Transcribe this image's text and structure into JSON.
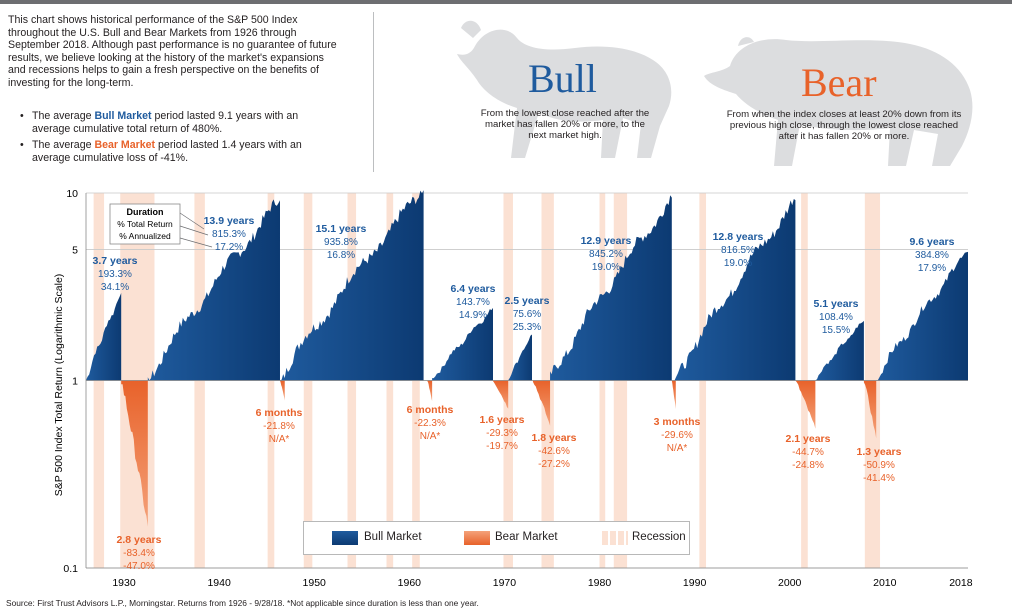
{
  "intro": {
    "paragraph": "This chart shows historical performance of the S&P 500 Index throughout the U.S. Bull and Bear Markets from 1926 through September 2018. Although past performance is no guarantee of future results, we believe looking at the history of the market's expansions and recessions helps to gain a fresh perspective on the benefits of investing for the long-term.",
    "bullet1_pre": "The average ",
    "bullet1_key": "Bull Market",
    "bullet1_post": " period lasted 9.1 years with an average cumulative total return of 480%.",
    "bullet2_pre": "The average ",
    "bullet2_key": "Bear Market",
    "bullet2_post": " period lasted 1.4 years with an average cumulative loss of -41%."
  },
  "headers": {
    "bull_title": "Bull",
    "bull_desc": "From the lowest close reached after the market has fallen 20% or more, to the next market high.",
    "bear_title": "Bear",
    "bear_desc": "From when the index closes at least 20% down from its previous high close, through the lowest close reached after it has fallen 20% or more."
  },
  "legend": {
    "bull": "Bull Market",
    "bear": "Bear Market",
    "recession": "Recession"
  },
  "source": "Source: First Trust Advisors L.P., Morningstar. Returns from 1926 - 9/28/18. *Not applicable since duration is less than one year.",
  "colors": {
    "bull": "#1f5b9e",
    "bull_dark": "#0c3a72",
    "bear": "#e8622a",
    "bear_light": "#f4a27a",
    "recession": "#fbe1d3",
    "gray_text": "#231f20",
    "silhouette": "#dcdddf"
  },
  "chart_data": {
    "type": "area",
    "ylabel": "S&P 500 Index Total Return (Logarithmic Scale)",
    "yscale": "log",
    "ylim": [
      0.1,
      10
    ],
    "y_ticks": [
      {
        "value": 10,
        "label": "10"
      },
      {
        "value": 5,
        "label": "5"
      },
      {
        "value": 1,
        "label": "1"
      },
      {
        "value": 0.1,
        "label": "0.1"
      }
    ],
    "xlim": [
      1926,
      2018.75
    ],
    "x_ticks": [
      {
        "value": 1930,
        "label": "1930"
      },
      {
        "value": 1940,
        "label": "1940"
      },
      {
        "value": 1950,
        "label": "1950"
      },
      {
        "value": 1960,
        "label": "1960"
      },
      {
        "value": 1970,
        "label": "1970"
      },
      {
        "value": 1980,
        "label": "1980"
      },
      {
        "value": 1990,
        "label": "1990"
      },
      {
        "value": 2000,
        "label": "2000"
      },
      {
        "value": 2010,
        "label": "2010"
      },
      {
        "value": 2018,
        "label": "2018"
      }
    ],
    "key_box": {
      "duration": "Duration",
      "total": "% Total Return",
      "annualized": "% Annualized"
    },
    "recessions": [
      [
        1926.8,
        1927.9
      ],
      [
        1929.6,
        1933.2
      ],
      [
        1937.4,
        1938.5
      ],
      [
        1945.1,
        1945.8
      ],
      [
        1948.9,
        1949.8
      ],
      [
        1953.5,
        1954.4
      ],
      [
        1957.6,
        1958.3
      ],
      [
        1960.3,
        1961.1
      ],
      [
        1969.9,
        1970.9
      ],
      [
        1973.9,
        1975.2
      ],
      [
        1980.0,
        1980.6
      ],
      [
        1981.5,
        1982.9
      ],
      [
        1990.5,
        1991.2
      ],
      [
        2001.2,
        2001.9
      ],
      [
        2007.9,
        2009.5
      ]
    ],
    "bull_markets": [
      {
        "start": 1926.0,
        "end": 1929.7,
        "peak": 2.93,
        "years": "3.7 years",
        "total": "193.3%",
        "annualized": "34.1%"
      },
      {
        "start": 1932.5,
        "end": 1946.4,
        "peak": 9.15,
        "years": "13.9 years",
        "total": "815.3%",
        "annualized": "17.2%"
      },
      {
        "start": 1946.4,
        "end": 1961.5,
        "peak": 10.36,
        "years": "15.1 years",
        "total": "935.8%",
        "annualized": "16.8%"
      },
      {
        "start": 1962.4,
        "end": 1968.8,
        "peak": 2.44,
        "years": "6.4 years",
        "total": "143.7%",
        "annualized": "14.9%"
      },
      {
        "start": 1970.4,
        "end": 1972.9,
        "peak": 1.76,
        "years": "2.5 years",
        "total": "75.6%",
        "annualized": "25.3%"
      },
      {
        "start": 1974.8,
        "end": 1987.6,
        "peak": 9.45,
        "years": "12.9 years",
        "total": "845.2%",
        "annualized": "19.0%"
      },
      {
        "start": 1987.9,
        "end": 2000.6,
        "peak": 9.17,
        "years": "12.8 years",
        "total": "816.5%",
        "annualized": "19.0%"
      },
      {
        "start": 2002.7,
        "end": 2007.8,
        "peak": 2.08,
        "years": "5.1 years",
        "total": "108.4%",
        "annualized": "15.5%"
      },
      {
        "start": 2009.1,
        "end": 2018.75,
        "peak": 4.85,
        "years": "9.6 years",
        "total": "384.8%",
        "annualized": "17.9%"
      }
    ],
    "bear_markets": [
      {
        "start": 1929.7,
        "end": 1932.5,
        "trough": 0.166,
        "years": "2.8 years",
        "total": "-83.4%",
        "annualized": "-47.0%"
      },
      {
        "start": 1946.4,
        "end": 1946.9,
        "trough": 0.782,
        "years": "6 months",
        "total": "-21.8%",
        "annualized": "N/A*"
      },
      {
        "start": 1961.9,
        "end": 1962.4,
        "trough": 0.777,
        "years": "6 months",
        "total": "-22.3%",
        "annualized": "N/A*"
      },
      {
        "start": 1968.8,
        "end": 1970.4,
        "trough": 0.707,
        "years": "1.6 years",
        "total": "-29.3%",
        "annualized": "-19.7%"
      },
      {
        "start": 1973.0,
        "end": 1974.8,
        "trough": 0.574,
        "years": "1.8 years",
        "total": "-42.6%",
        "annualized": "-27.2%"
      },
      {
        "start": 1987.6,
        "end": 1987.9,
        "trough": 0.704,
        "years": "3 months",
        "total": "-29.6%",
        "annualized": "N/A*"
      },
      {
        "start": 2000.6,
        "end": 2002.7,
        "trough": 0.553,
        "years": "2.1 years",
        "total": "-44.7%",
        "annualized": "-24.8%"
      },
      {
        "start": 2007.8,
        "end": 2009.1,
        "trough": 0.491,
        "years": "1.3 years",
        "total": "-50.9%",
        "annualized": "-41.4%"
      }
    ]
  }
}
